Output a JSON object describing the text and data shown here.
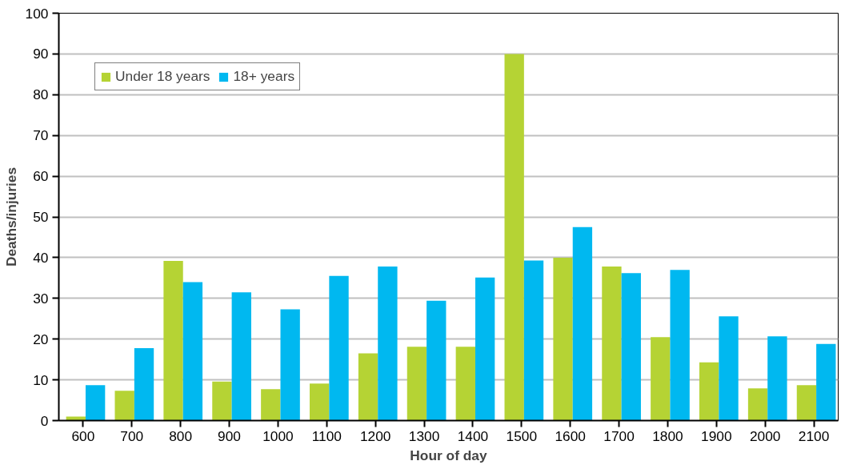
{
  "chart_data": {
    "type": "bar",
    "xlabel": "Hour of day",
    "ylabel": "Deaths/injuries",
    "categories": [
      "600",
      "700",
      "800",
      "900",
      "1000",
      "1100",
      "1200",
      "1300",
      "1400",
      "1500",
      "1600",
      "1700",
      "1800",
      "1900",
      "2000",
      "2100"
    ],
    "series": [
      {
        "name": "Under 18 years",
        "color": "#b5d334",
        "values": [
          1,
          7.3,
          39.2,
          9.6,
          7.7,
          9.1,
          16.5,
          18.1,
          18.1,
          90,
          40,
          37.8,
          20.5,
          14.3,
          7.9,
          8.7
        ]
      },
      {
        "name": "18+ years",
        "color": "#00b8f0",
        "values": [
          8.7,
          17.8,
          34,
          31.5,
          27.3,
          35.5,
          37.8,
          29.4,
          35.1,
          39.3,
          47.5,
          36.2,
          37,
          25.6,
          20.7,
          18.8
        ]
      }
    ],
    "ylim": [
      0,
      100
    ],
    "yticks": [
      0,
      10,
      20,
      30,
      40,
      50,
      60,
      70,
      80,
      90,
      100
    ],
    "grid": "y",
    "legend": "top left"
  }
}
